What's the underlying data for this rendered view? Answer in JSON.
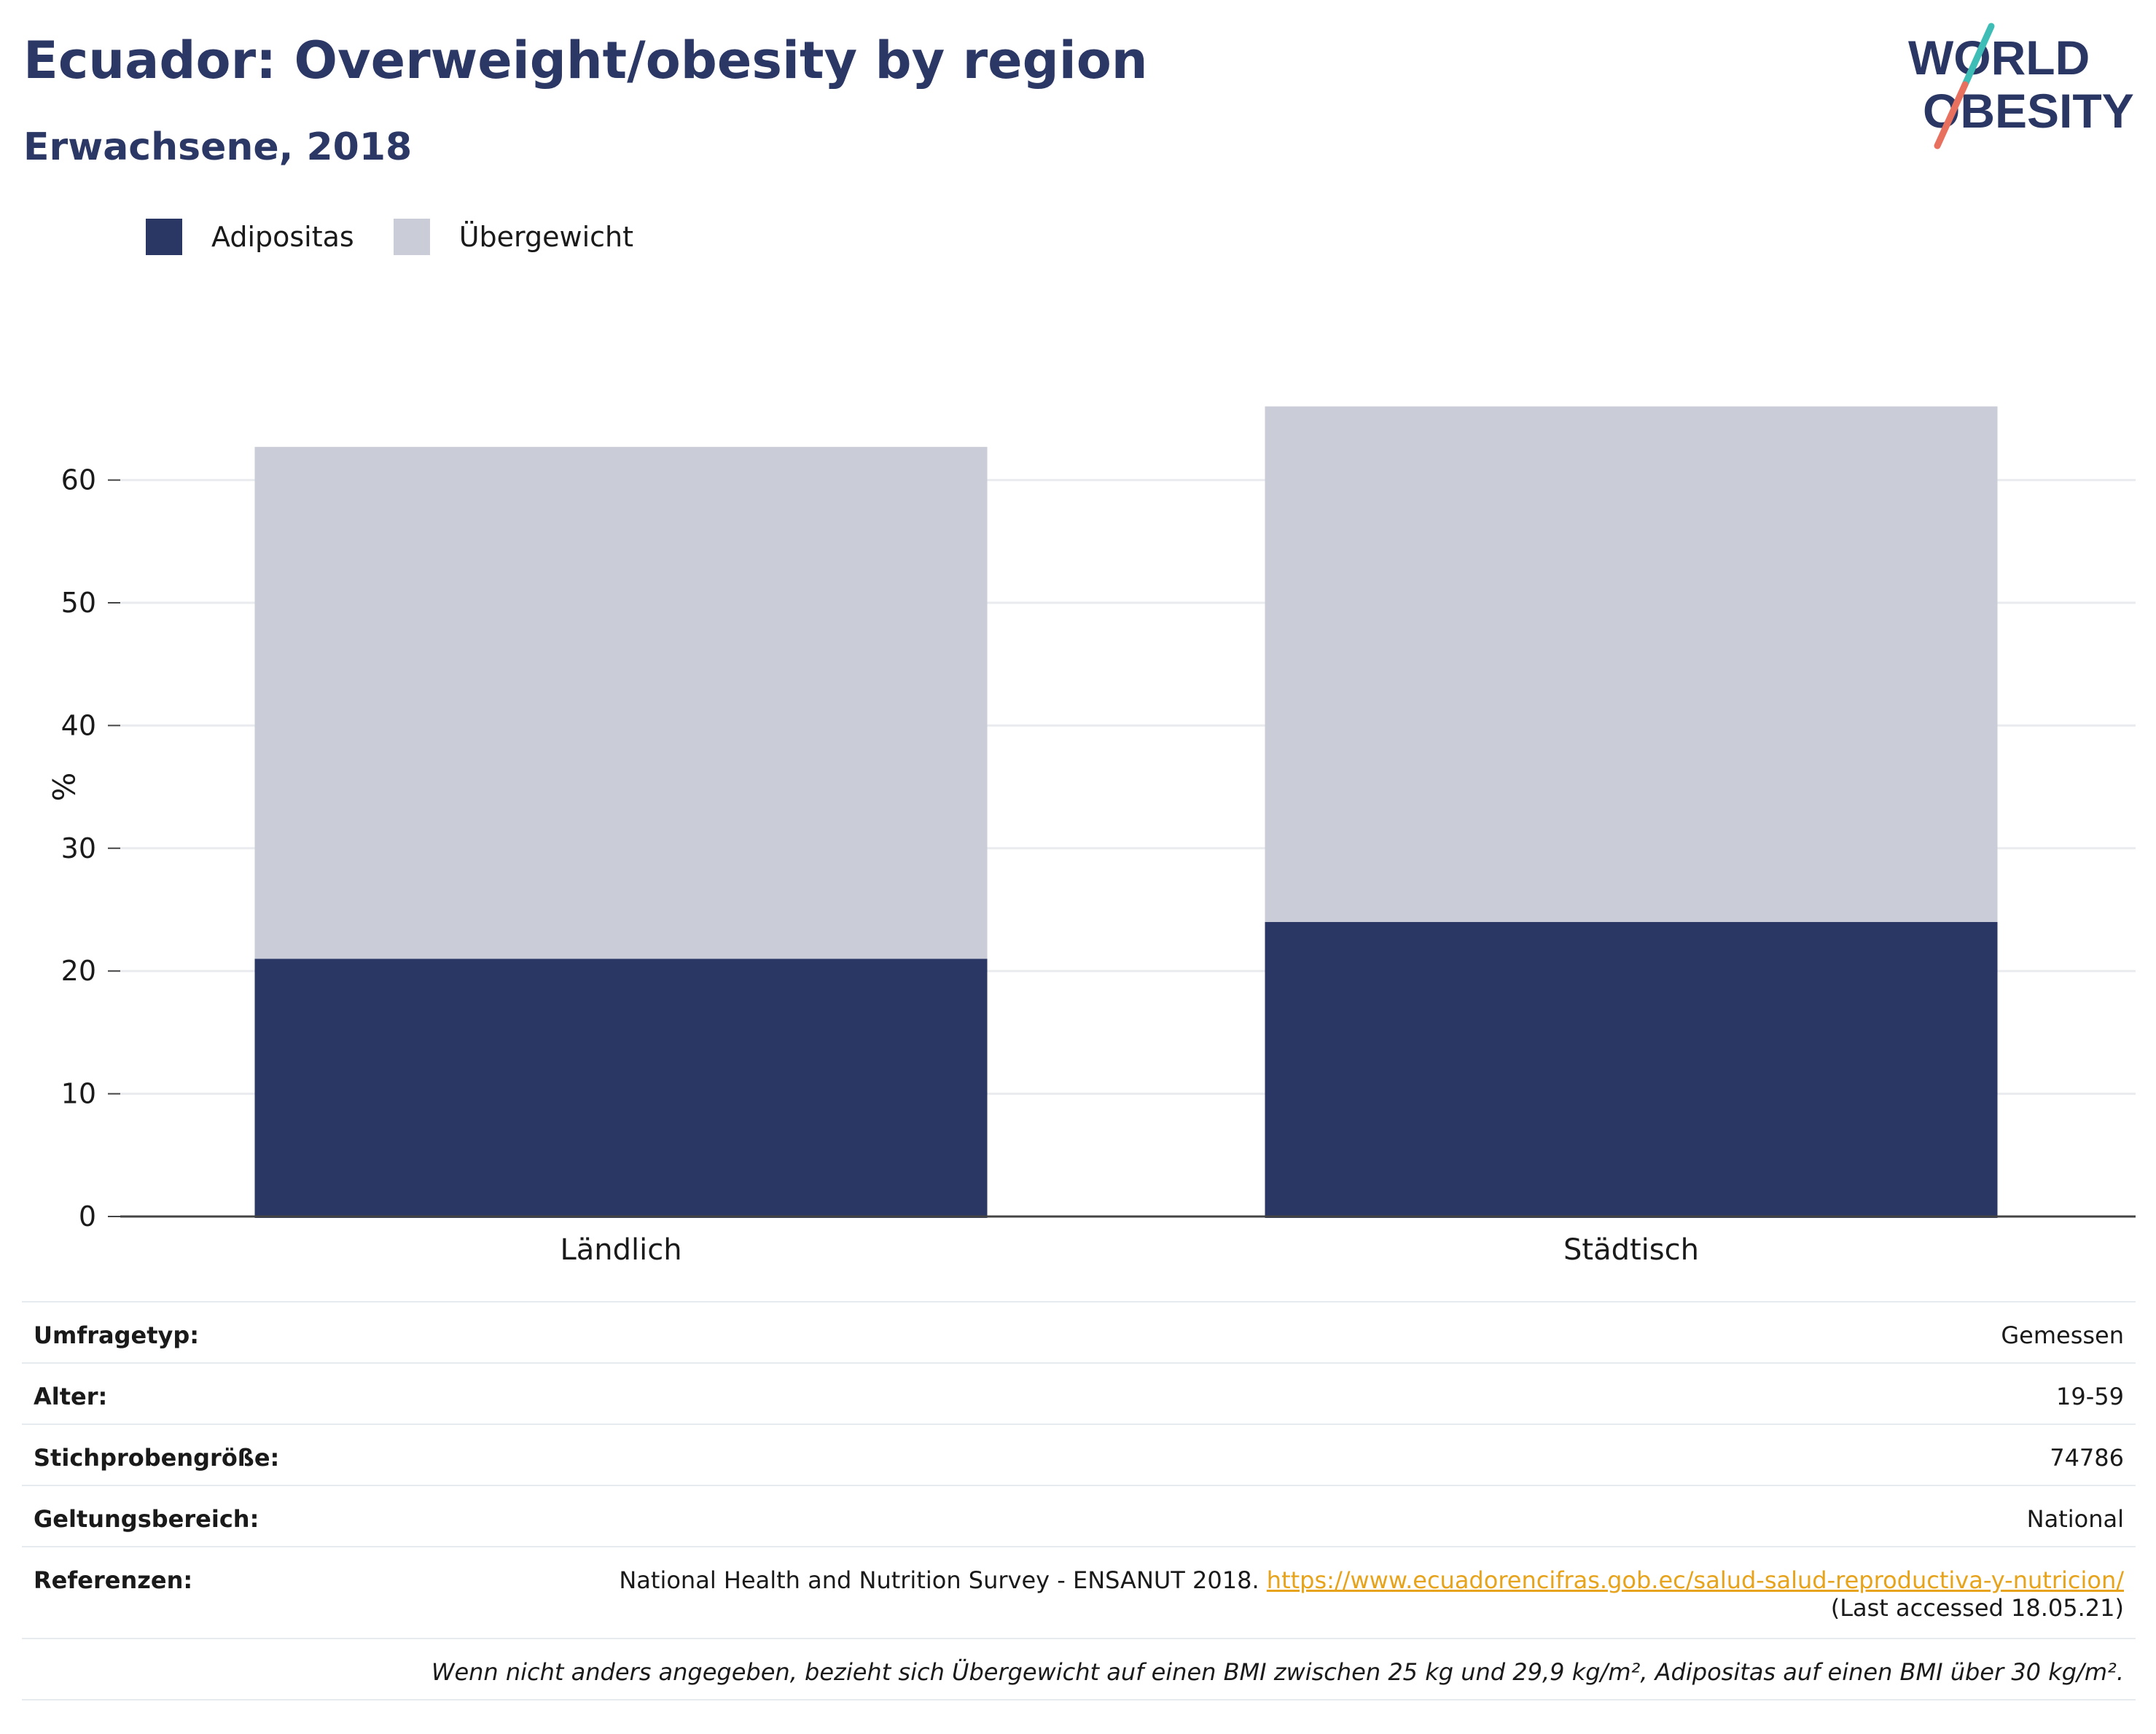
{
  "header": {
    "title": "Ecuador: Overweight/obesity by region",
    "subtitle": "Erwachsene, 2018",
    "logo_line1": "WORLD",
    "logo_line2": "OBESITY"
  },
  "colors": {
    "obesity": "#2a3764",
    "overweight": "#cacdd8",
    "logo_teal": "#3dbdb5",
    "logo_coral": "#e8705f",
    "link": "#e6a31b"
  },
  "chart_data": {
    "type": "bar",
    "stacked": true,
    "categories": [
      "Ländlich",
      "Städtisch"
    ],
    "series": [
      {
        "name": "Adipositas",
        "values": [
          21.0,
          24.0
        ]
      },
      {
        "name": "Übergewicht",
        "values": [
          41.7,
          42.0
        ]
      }
    ],
    "xlabel": "",
    "ylabel": "%",
    "ylim": [
      0,
      70
    ],
    "yticks": [
      0,
      10,
      20,
      30,
      40,
      50,
      60
    ],
    "grid": true,
    "legend_position": "top-left"
  },
  "meta": {
    "survey_type_label": "Umfragetyp:",
    "survey_type_value": "Gemessen",
    "age_label": "Alter:",
    "age_value": "19-59",
    "sample_label": "Stichprobengröße:",
    "sample_value": "74786",
    "scope_label": "Geltungsbereich:",
    "scope_value": "National",
    "refs_label": "Referenzen:",
    "refs_text": "National Health and Nutrition Survey - ENSANUT 2018.",
    "refs_link": "https://www.ecuadorencifras.gob.ec/salud-salud-reproductiva-y-nutricion/",
    "refs_accessed": "(Last accessed 18.05.21)",
    "footnote": "Wenn nicht anders angegeben, bezieht sich Übergewicht auf einen BMI zwischen 25 kg und 29,9 kg/m², Adipositas auf einen BMI über 30 kg/m²."
  }
}
